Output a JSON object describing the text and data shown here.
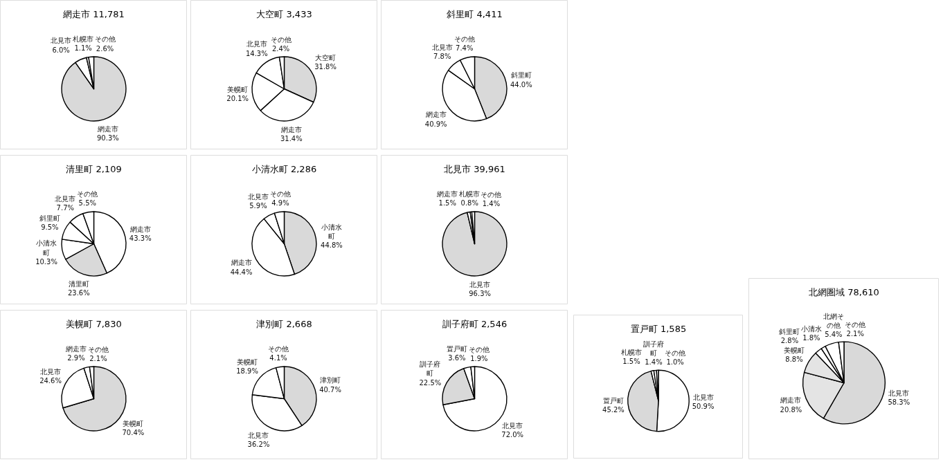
{
  "chart_data": [
    {
      "type": "pie",
      "title": "網走市 11,781",
      "categories": [
        "網走市",
        "北見市",
        "札幌市",
        "その他"
      ],
      "values": [
        90.3,
        6.0,
        1.1,
        2.6
      ],
      "value_labels": [
        "90.3%",
        "6.0%",
        "1.1%",
        "2.6%"
      ],
      "colors": [
        "#d9d9d9",
        "#ffffff",
        "#ffffff",
        "#ffffff"
      ]
    },
    {
      "type": "pie",
      "title": "大空町 3,433",
      "categories": [
        "大空町",
        "網走市",
        "美幌町",
        "北見市",
        "その他"
      ],
      "values": [
        31.8,
        31.4,
        20.1,
        14.3,
        2.4
      ],
      "value_labels": [
        "31.8%",
        "31.4%",
        "20.1%",
        "14.3%",
        "2.4%"
      ],
      "colors": [
        "#d9d9d9",
        "#ffffff",
        "#ffffff",
        "#ffffff",
        "#ffffff"
      ]
    },
    {
      "type": "pie",
      "title": "斜里町 4,411",
      "categories": [
        "斜里町",
        "網走市",
        "北見市",
        "その他"
      ],
      "values": [
        44.0,
        40.9,
        7.8,
        7.4
      ],
      "value_labels": [
        "44.0%",
        "40.9%",
        "7.8%",
        "7.4%"
      ],
      "colors": [
        "#d9d9d9",
        "#ffffff",
        "#ffffff",
        "#ffffff"
      ]
    },
    {
      "type": "pie",
      "title": "清里町 2,109",
      "categories": [
        "網走市",
        "清里町",
        "小清水町",
        "斜里町",
        "北見市",
        "その他"
      ],
      "values": [
        43.3,
        23.6,
        10.3,
        9.5,
        7.7,
        5.5
      ],
      "value_labels": [
        "43.3%",
        "23.6%",
        "10.3%",
        "9.5%",
        "7.7%",
        "5.5%"
      ],
      "colors": [
        "#ffffff",
        "#d9d9d9",
        "#ffffff",
        "#ffffff",
        "#ffffff",
        "#ffffff"
      ]
    },
    {
      "type": "pie",
      "title": "小清水町 2,286",
      "categories": [
        "小清水町",
        "網走市",
        "北見市",
        "その他"
      ],
      "values": [
        44.8,
        44.4,
        5.9,
        4.9
      ],
      "value_labels": [
        "44.8%",
        "44.4%",
        "5.9%",
        "4.9%"
      ],
      "colors": [
        "#d9d9d9",
        "#ffffff",
        "#ffffff",
        "#ffffff"
      ]
    },
    {
      "type": "pie",
      "title": "北見市 39,961",
      "categories": [
        "北見市",
        "網走市",
        "札幌市",
        "その他"
      ],
      "values": [
        96.3,
        1.5,
        0.8,
        1.4
      ],
      "value_labels": [
        "96.3%",
        "1.5%",
        "0.8%",
        "1.4%"
      ],
      "colors": [
        "#d9d9d9",
        "#ffffff",
        "#ffffff",
        "#ffffff"
      ]
    },
    {
      "type": "pie",
      "title": "美幌町 7,830",
      "categories": [
        "美幌町",
        "北見市",
        "網走市",
        "その他"
      ],
      "values": [
        70.4,
        24.6,
        2.9,
        2.1
      ],
      "value_labels": [
        "70.4%",
        "24.6%",
        "2.9%",
        "2.1%"
      ],
      "colors": [
        "#d9d9d9",
        "#ffffff",
        "#ffffff",
        "#ffffff"
      ]
    },
    {
      "type": "pie",
      "title": "津別町 2,668",
      "categories": [
        "津別町",
        "北見市",
        "美幌町",
        "その他"
      ],
      "values": [
        40.7,
        36.2,
        18.9,
        4.1
      ],
      "value_labels": [
        "40.7%",
        "36.2%",
        "18.9%",
        "4.1%"
      ],
      "colors": [
        "#d9d9d9",
        "#ffffff",
        "#ffffff",
        "#ffffff"
      ]
    },
    {
      "type": "pie",
      "title": "訓子府町 2,546",
      "categories": [
        "北見市",
        "訓子府町",
        "置戸町",
        "その他"
      ],
      "values": [
        72.0,
        22.5,
        3.6,
        1.9
      ],
      "value_labels": [
        "72.0%",
        "22.5%",
        "3.6%",
        "1.9%"
      ],
      "colors": [
        "#ffffff",
        "#d9d9d9",
        "#ffffff",
        "#ffffff"
      ]
    },
    {
      "type": "pie",
      "title": "置戸町 1,585",
      "categories": [
        "北見市",
        "置戸町",
        "札幌市",
        "訓子府町",
        "その他"
      ],
      "values": [
        50.9,
        45.2,
        1.5,
        1.4,
        1.0
      ],
      "value_labels": [
        "50.9%",
        "45.2%",
        "1.5%",
        "1.4%",
        "1.0%"
      ],
      "colors": [
        "#ffffff",
        "#d9d9d9",
        "#ffffff",
        "#ffffff",
        "#ffffff"
      ]
    },
    {
      "type": "pie",
      "title": "北網圏域 78,610",
      "categories": [
        "北見市",
        "網走市",
        "美幌町",
        "斜里町",
        "小清水",
        "北網その他",
        "その他"
      ],
      "values": [
        58.3,
        20.8,
        8.8,
        2.8,
        1.8,
        5.4,
        2.1
      ],
      "value_labels": [
        "58.3%",
        "20.8%",
        "8.8%",
        "2.8%",
        "1.8%",
        "5.4%",
        "2.1%"
      ],
      "colors": [
        "#d9d9d9",
        "#e4e4e4",
        "#e4e4e4",
        "#ffffff",
        "#ffffff",
        "#ffffff",
        "#ffffff"
      ]
    }
  ]
}
